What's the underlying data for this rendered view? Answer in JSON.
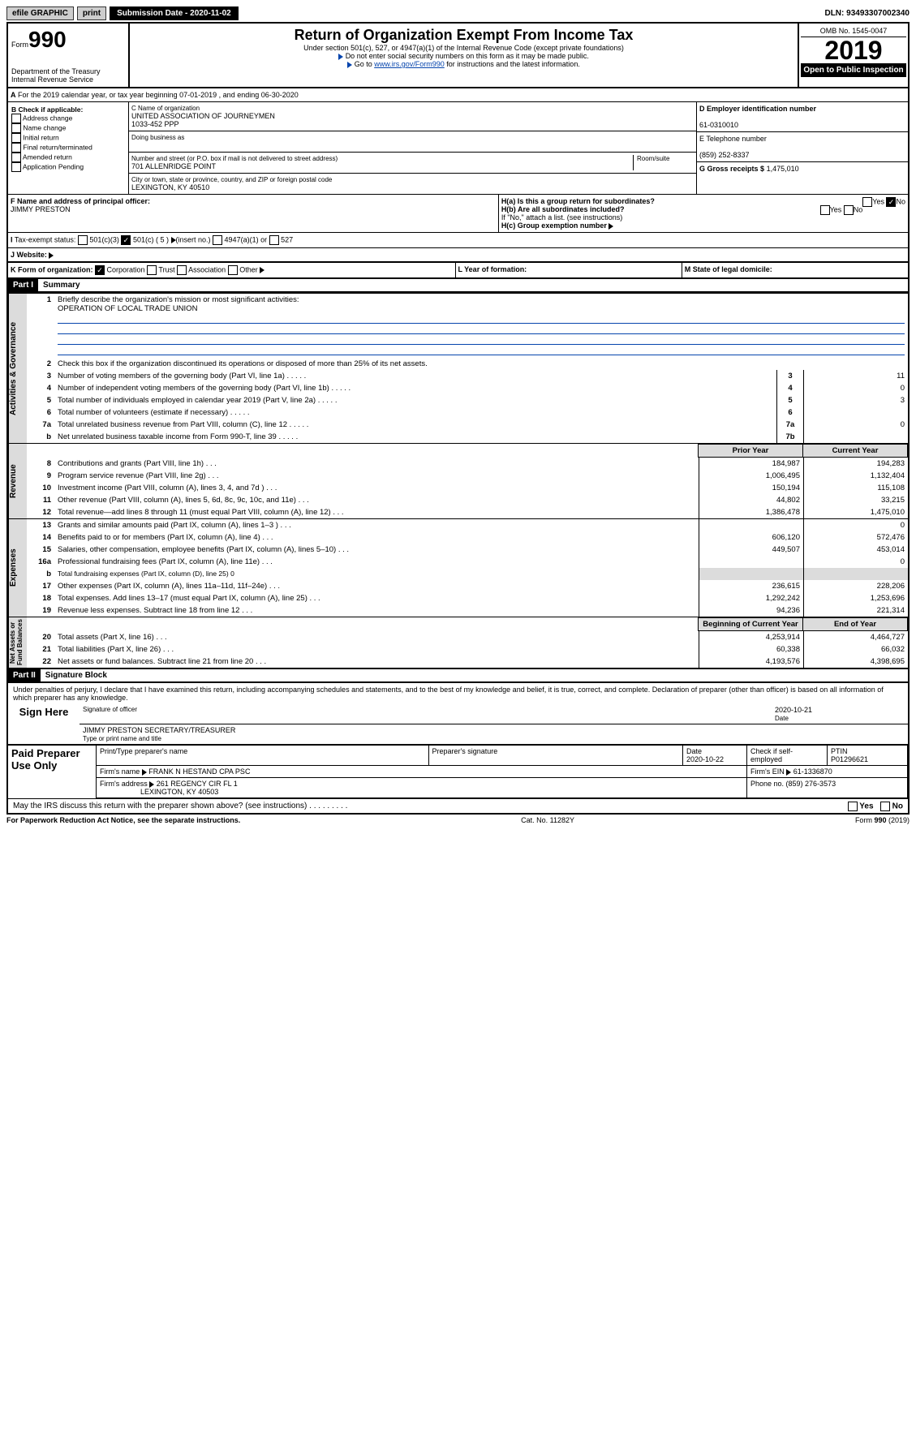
{
  "topbar": {
    "efile": "efile GRAPHIC",
    "print": "print",
    "subdate_lbl": "Submission Date - 2020-11-02",
    "dln": "DLN: 93493307002340"
  },
  "header": {
    "form": "Form",
    "num": "990",
    "title": "Return of Organization Exempt From Income Tax",
    "sub1": "Under section 501(c), 527, or 4947(a)(1) of the Internal Revenue Code (except private foundations)",
    "sub2": "Do not enter social security numbers on this form as it may be made public.",
    "sub3a": "Go to ",
    "sub3b": "www.irs.gov/Form990",
    "sub3c": " for instructions and the latest information.",
    "omb": "OMB No. 1545-0047",
    "year": "2019",
    "open": "Open to Public Inspection",
    "dept": "Department of the Treasury\nInternal Revenue Service"
  },
  "period": {
    "line": "For the 2019 calendar year, or tax year beginning 07-01-2019   , and ending 06-30-2020"
  },
  "B": {
    "hdr": "B Check if applicable:",
    "items": [
      "Address change",
      "Name change",
      "Initial return",
      "Final return/terminated",
      "Amended return",
      "Application Pending"
    ]
  },
  "C": {
    "name_lbl": "C Name of organization",
    "name": "UNITED ASSOCIATION OF JOURNEYMEN",
    "name2": "1033-452 PPP",
    "dba_lbl": "Doing business as",
    "addr_lbl": "Number and street (or P.O. box if mail is not delivered to street address)",
    "room_lbl": "Room/suite",
    "addr": "701 ALLENRIDGE POINT",
    "city_lbl": "City or town, state or province, country, and ZIP or foreign postal code",
    "city": "LEXINGTON, KY  40510"
  },
  "D": {
    "lbl": "D Employer identification number",
    "val": "61-0310010"
  },
  "E": {
    "lbl": "E Telephone number",
    "val": "(859) 252-8337"
  },
  "G": {
    "lbl": "G Gross receipts $",
    "val": "1,475,010"
  },
  "F": {
    "lbl": "F  Name and address of principal officer:",
    "val": "JIMMY PRESTON"
  },
  "H": {
    "a": "H(a)  Is this a group return for subordinates?",
    "b": "H(b)  Are all subordinates included?",
    "b2": "If \"No,\" attach a list. (see instructions)",
    "c": "H(c)  Group exemption number",
    "yes": "Yes",
    "no": "No"
  },
  "I": {
    "lbl": "Tax-exempt status:",
    "opts": [
      "501(c)(3)",
      "501(c) ( 5 )",
      "(insert no.)",
      "4947(a)(1) or",
      "527"
    ]
  },
  "J": {
    "lbl": "Website:"
  },
  "K": {
    "lbl": "K Form of organization:",
    "opts": [
      "Corporation",
      "Trust",
      "Association",
      "Other"
    ]
  },
  "L": {
    "lbl": "L Year of formation:"
  },
  "M": {
    "lbl": "M State of legal domicile:"
  },
  "part1": {
    "hdr": "Part I",
    "title": "Summary"
  },
  "summary": {
    "l1": "Briefly describe the organization's mission or most significant activities:",
    "l1v": "OPERATION OF LOCAL TRADE UNION",
    "l2": "Check this box      if the organization discontinued its operations or disposed of more than 25% of its net assets.",
    "rows": [
      {
        "n": "3",
        "t": "Number of voting members of the governing body (Part VI, line 1a)",
        "k": "3",
        "v": "11"
      },
      {
        "n": "4",
        "t": "Number of independent voting members of the governing body (Part VI, line 1b)",
        "k": "4",
        "v": "0"
      },
      {
        "n": "5",
        "t": "Total number of individuals employed in calendar year 2019 (Part V, line 2a)",
        "k": "5",
        "v": "3"
      },
      {
        "n": "6",
        "t": "Total number of volunteers (estimate if necessary)",
        "k": "6",
        "v": ""
      },
      {
        "n": "7a",
        "t": "Total unrelated business revenue from Part VIII, column (C), line 12",
        "k": "7a",
        "v": "0"
      },
      {
        "n": "b",
        "t": "Net unrelated business taxable income from Form 990-T, line 39",
        "k": "7b",
        "v": ""
      }
    ]
  },
  "fin_hdr": {
    "py": "Prior Year",
    "cy": "Current Year",
    "bcy": "Beginning of Current Year",
    "eoy": "End of Year"
  },
  "revenue": [
    {
      "n": "8",
      "t": "Contributions and grants (Part VIII, line 1h)",
      "p": "184,987",
      "c": "194,283"
    },
    {
      "n": "9",
      "t": "Program service revenue (Part VIII, line 2g)",
      "p": "1,006,495",
      "c": "1,132,404"
    },
    {
      "n": "10",
      "t": "Investment income (Part VIII, column (A), lines 3, 4, and 7d )",
      "p": "150,194",
      "c": "115,108"
    },
    {
      "n": "11",
      "t": "Other revenue (Part VIII, column (A), lines 5, 6d, 8c, 9c, 10c, and 11e)",
      "p": "44,802",
      "c": "33,215"
    },
    {
      "n": "12",
      "t": "Total revenue—add lines 8 through 11 (must equal Part VIII, column (A), line 12)",
      "p": "1,386,478",
      "c": "1,475,010"
    }
  ],
  "expenses": [
    {
      "n": "13",
      "t": "Grants and similar amounts paid (Part IX, column (A), lines 1–3 )",
      "p": "",
      "c": "0"
    },
    {
      "n": "14",
      "t": "Benefits paid to or for members (Part IX, column (A), line 4)",
      "p": "606,120",
      "c": "572,476"
    },
    {
      "n": "15",
      "t": "Salaries, other compensation, employee benefits (Part IX, column (A), lines 5–10)",
      "p": "449,507",
      "c": "453,014"
    },
    {
      "n": "16a",
      "t": "Professional fundraising fees (Part IX, column (A), line 11e)",
      "p": "",
      "c": "0"
    },
    {
      "n": "b",
      "t": "Total fundraising expenses (Part IX, column (D), line 25)  0",
      "p": "—",
      "c": "—"
    },
    {
      "n": "17",
      "t": "Other expenses (Part IX, column (A), lines 11a–11d, 11f–24e)",
      "p": "236,615",
      "c": "228,206"
    },
    {
      "n": "18",
      "t": "Total expenses. Add lines 13–17 (must equal Part IX, column (A), line 25)",
      "p": "1,292,242",
      "c": "1,253,696"
    },
    {
      "n": "19",
      "t": "Revenue less expenses. Subtract line 18 from line 12",
      "p": "94,236",
      "c": "221,314"
    }
  ],
  "netassets": [
    {
      "n": "20",
      "t": "Total assets (Part X, line 16)",
      "p": "4,253,914",
      "c": "4,464,727"
    },
    {
      "n": "21",
      "t": "Total liabilities (Part X, line 26)",
      "p": "60,338",
      "c": "66,032"
    },
    {
      "n": "22",
      "t": "Net assets or fund balances. Subtract line 21 from line 20",
      "p": "4,193,576",
      "c": "4,398,695"
    }
  ],
  "part2": {
    "hdr": "Part II",
    "title": "Signature Block",
    "decl": "Under penalties of perjury, I declare that I have examined this return, including accompanying schedules and statements, and to the best of my knowledge and belief, it is true, correct, and complete. Declaration of preparer (other than officer) is based on all information of which preparer has any knowledge."
  },
  "sign": {
    "here": "Sign Here",
    "sig_lbl": "Signature of officer",
    "date": "2020-10-21",
    "date_lbl": "Date",
    "name": "JIMMY PRESTON  SECRETARY/TREASURER",
    "name_lbl": "Type or print name and title"
  },
  "paid": {
    "hdr": "Paid Preparer Use Only",
    "c1": "Print/Type preparer's name",
    "c2": "Preparer's signature",
    "c3": "Date",
    "c3v": "2020-10-22",
    "c4": "Check      if self-employed",
    "c5": "PTIN",
    "c5v": "P01296621",
    "r2a": "Firm's name   ",
    "r2b": "FRANK N HESTAND CPA PSC",
    "r2c": "Firm's EIN  ",
    "r2d": "61-1336870",
    "r3a": "Firm's address  ",
    "r3b": "261 REGENCY CIR FL 1",
    "r3b2": "LEXINGTON, KY  40503",
    "r3c": "Phone no. (859) 276-3573"
  },
  "footer": {
    "q": "May the IRS discuss this return with the preparer shown above? (see instructions)",
    "yes": "Yes",
    "no": "No",
    "pra": "For Paperwork Reduction Act Notice, see the separate instructions.",
    "cat": "Cat. No. 11282Y",
    "form": "Form 990 (2019)"
  }
}
